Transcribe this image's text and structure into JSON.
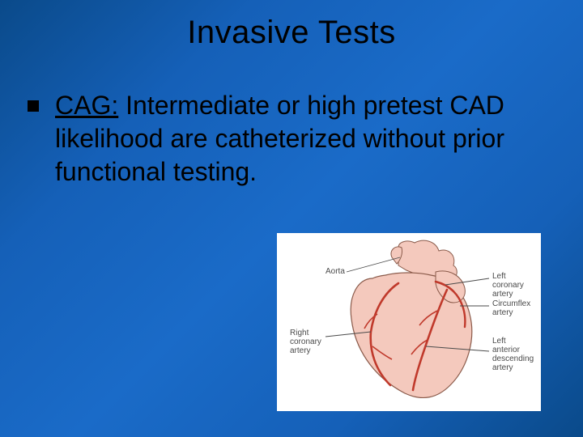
{
  "slide": {
    "title": "Invasive Tests",
    "title_fontsize": 40,
    "title_color": "#000000",
    "background_gradient": [
      "#0a4a8a",
      "#1560b8",
      "#1a6bc8",
      "#1560b8",
      "#0a4a8a"
    ],
    "bullet": {
      "marker_color": "#000000",
      "marker_size": 14,
      "text_color": "#000000",
      "text_fontsize": 32,
      "lead_underlined": "CAG:",
      "rest": " Intermediate or high pretest CAD likelihood are catheterized without prior functional testing."
    },
    "diagram": {
      "type": "infographic",
      "subject": "heart-coronary-arteries",
      "background_color": "#ffffff",
      "heart_fill": "#f4c9bd",
      "heart_stroke": "#8a5a4a",
      "artery_color": "#c0392b",
      "label_color": "#4a4a4a",
      "label_fontsize": 10,
      "labels": {
        "aorta": "Aorta",
        "right_coronary": "Right\ncoronary\nartery",
        "left_coronary": "Left\ncoronary\nartery",
        "circumflex": "Circumflex\nartery",
        "lad": "Left\nanterior\ndescending\nartery"
      }
    }
  }
}
